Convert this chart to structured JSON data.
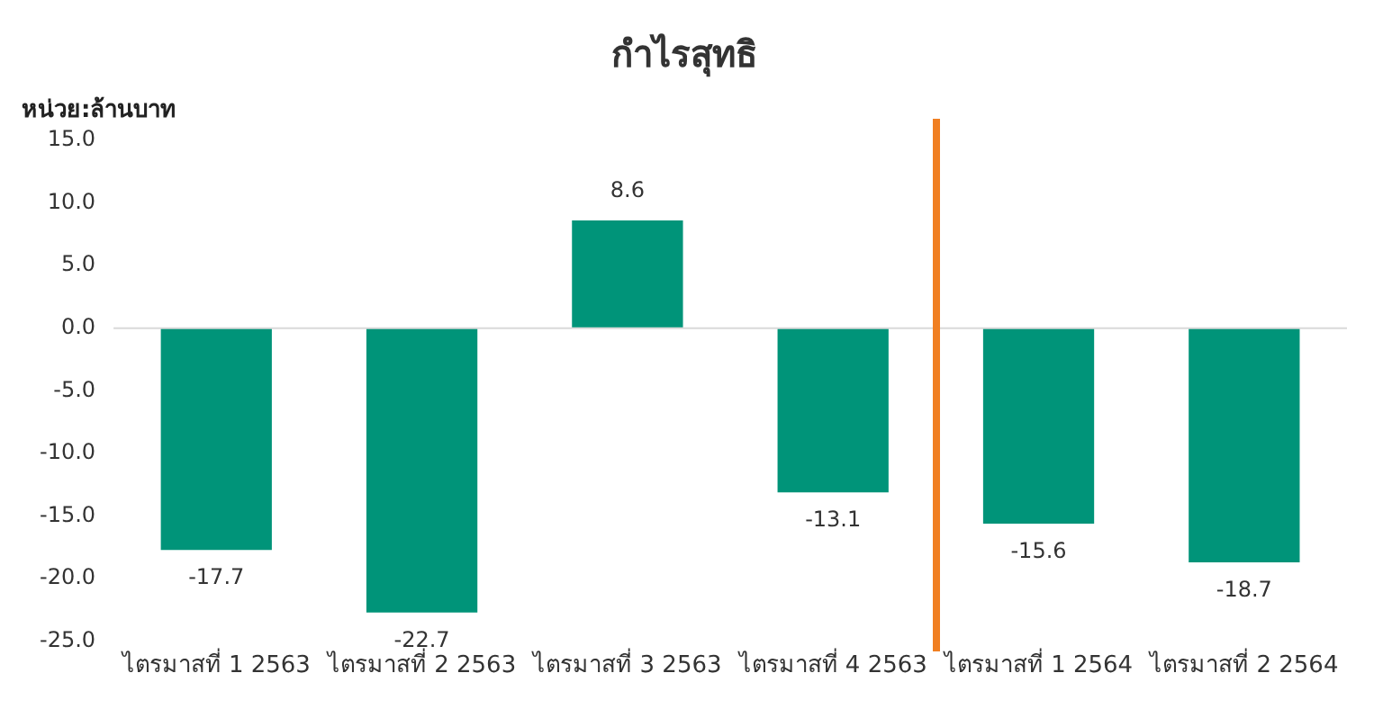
{
  "chart_data": {
    "type": "bar",
    "title": "กำไรสุทธิ",
    "ylabel": "หน่วย:ล้านบาท",
    "categories": [
      "ไตรมาสที่ 1 2563",
      "ไตรมาสที่ 2 2563",
      "ไตรมาสที่ 3 2563",
      "ไตรมาสที่ 4 2563",
      "ไตรมาสที่ 1 2564",
      "ไตรมาสที่ 2 2564"
    ],
    "values": [
      -17.7,
      -22.7,
      8.6,
      -13.1,
      -15.6,
      -18.7
    ],
    "color": "#009479",
    "ylim": [
      -25,
      15
    ],
    "yticks": [
      {
        "value": -25,
        "label": "-25.0"
      },
      {
        "value": -20,
        "label": "-20.0"
      },
      {
        "value": -15,
        "label": "-15.0"
      },
      {
        "value": -10,
        "label": "-10.0"
      },
      {
        "value": -5,
        "label": "-5.0"
      },
      {
        "value": 0,
        "label": "0.0"
      },
      {
        "value": 5,
        "label": "5.0"
      },
      {
        "value": 10,
        "label": "10.0"
      },
      {
        "value": 15,
        "label": "15.0"
      }
    ],
    "ref_lines": [
      {
        "axis": "y",
        "value": 0,
        "color": "#d9d9d9"
      }
    ],
    "data_labels": true,
    "grid": false,
    "legend": false
  }
}
